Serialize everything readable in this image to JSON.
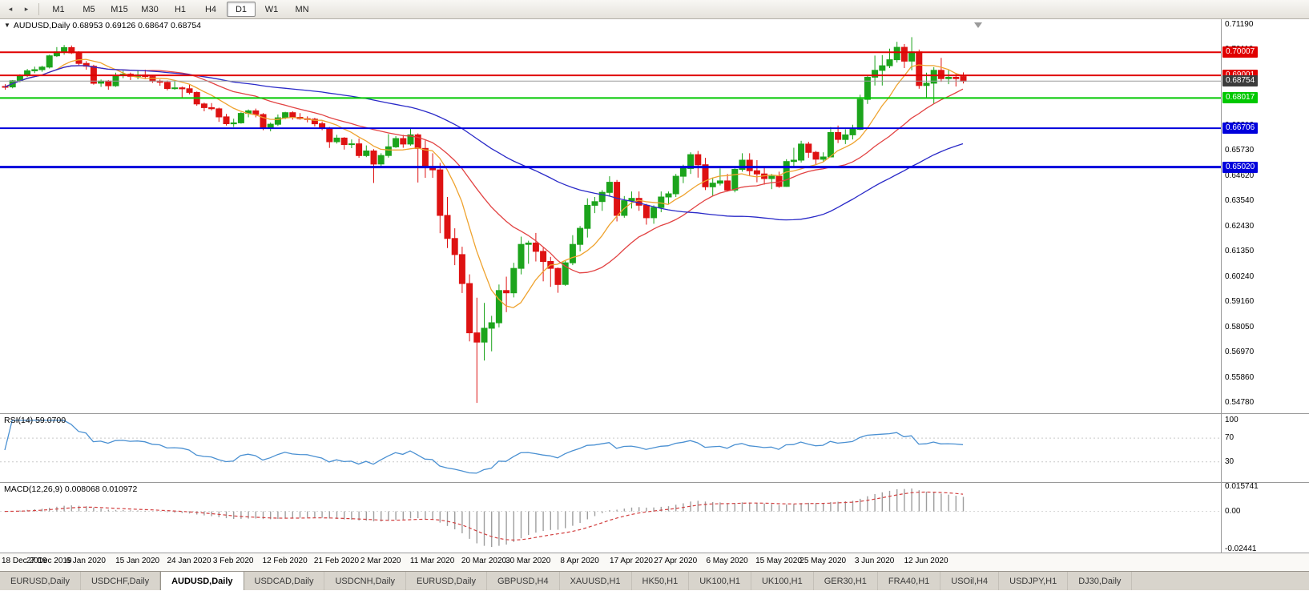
{
  "toolbar": {
    "timeframes": [
      "M1",
      "M5",
      "M15",
      "M30",
      "H1",
      "H4",
      "D1",
      "W1",
      "MN"
    ],
    "active_timeframe": "D1"
  },
  "main_chart": {
    "title": "AUDUSD,Daily 0.68953 0.69126 0.68647 0.68754",
    "price_min": 0.5454,
    "price_max": 0.7137,
    "price_axis_ticks": [
      {
        "label": "0.71190",
        "value": 0.7119
      },
      {
        "label": "0.70110",
        "value": 0.7011
      },
      {
        "label": "0.69000",
        "value": 0.69
      },
      {
        "label": "0.67920",
        "value": 0.6792
      },
      {
        "label": "0.66810",
        "value": 0.6681
      },
      {
        "label": "0.65730",
        "value": 0.6573
      },
      {
        "label": "0.64620",
        "value": 0.6462
      },
      {
        "label": "0.63540",
        "value": 0.6354
      },
      {
        "label": "0.62430",
        "value": 0.6243
      },
      {
        "label": "0.61350",
        "value": 0.6135
      },
      {
        "label": "0.60240",
        "value": 0.6024
      },
      {
        "label": "0.59160",
        "value": 0.5916
      },
      {
        "label": "0.58050",
        "value": 0.5805
      },
      {
        "label": "0.56970",
        "value": 0.5697
      },
      {
        "label": "0.55860",
        "value": 0.5586
      },
      {
        "label": "0.54780",
        "value": 0.5478
      }
    ],
    "horizontal_lines": [
      {
        "label": "0.70007",
        "price": 0.70007,
        "color": "#E00000",
        "width": 2
      },
      {
        "label": "0.69001",
        "price": 0.69001,
        "color": "#E00000",
        "width": 2
      },
      {
        "label": "0.68017",
        "price": 0.68017,
        "color": "#00C800",
        "width": 2
      },
      {
        "label": "0.66706",
        "price": 0.66706,
        "color": "#0000DC",
        "width": 2
      },
      {
        "label": "0.65020",
        "price": 0.6502,
        "color": "#0000DC",
        "width": 3
      }
    ],
    "current_price": {
      "label": "0.68754",
      "value": 0.68754,
      "badge_color": "#3C3C3C",
      "line_color": "#9a9a9a"
    },
    "colors": {
      "bull": "#1CA41C",
      "bear": "#DE1212",
      "ma_fast": "#EFA32F",
      "ma_medium": "#E24343",
      "ma_slow": "#2A2AC8"
    }
  },
  "chart_data": {
    "type": "candlestick",
    "symbol": "AUDUSD",
    "timeframe": "Daily",
    "ohlc_display": {
      "open": "0.68953",
      "high": "0.69126",
      "low": "0.68647",
      "close": "0.68754"
    },
    "moving_averages": [
      {
        "name": "fast",
        "period": 8
      },
      {
        "name": "medium",
        "period": 20
      },
      {
        "name": "slow",
        "period": 50
      }
    ],
    "candles": [
      [
        0.6852,
        0.6862,
        0.6838,
        0.685
      ],
      [
        0.685,
        0.688,
        0.6844,
        0.6877
      ],
      [
        0.6877,
        0.6905,
        0.687,
        0.69
      ],
      [
        0.69,
        0.6928,
        0.6893,
        0.692
      ],
      [
        0.692,
        0.6938,
        0.691,
        0.6925
      ],
      [
        0.6925,
        0.6942,
        0.6916,
        0.6936
      ],
      [
        0.6936,
        0.699,
        0.693,
        0.6985
      ],
      [
        0.6985,
        0.7023,
        0.698,
        0.7002
      ],
      [
        0.7002,
        0.7032,
        0.699,
        0.7021
      ],
      [
        0.7021,
        0.703,
        0.6993,
        0.6998
      ],
      [
        0.6998,
        0.7005,
        0.6945,
        0.6952
      ],
      [
        0.6952,
        0.6962,
        0.6925,
        0.694
      ],
      [
        0.694,
        0.6946,
        0.686,
        0.6866
      ],
      [
        0.6866,
        0.6882,
        0.685,
        0.6875
      ],
      [
        0.6875,
        0.688,
        0.6838,
        0.6855
      ],
      [
        0.6855,
        0.6912,
        0.685,
        0.69
      ],
      [
        0.69,
        0.692,
        0.6888,
        0.6905
      ],
      [
        0.6905,
        0.6912,
        0.688,
        0.6896
      ],
      [
        0.6896,
        0.692,
        0.6883,
        0.6902
      ],
      [
        0.6902,
        0.6925,
        0.6884,
        0.6895
      ],
      [
        0.6895,
        0.69,
        0.6868,
        0.6875
      ],
      [
        0.6875,
        0.6882,
        0.6855,
        0.687
      ],
      [
        0.687,
        0.6878,
        0.6835,
        0.6843
      ],
      [
        0.6843,
        0.688,
        0.6838,
        0.6846
      ],
      [
        0.6846,
        0.6852,
        0.6805,
        0.6842
      ],
      [
        0.6842,
        0.686,
        0.6818,
        0.6826
      ],
      [
        0.6826,
        0.683,
        0.6768,
        0.6776
      ],
      [
        0.6776,
        0.6782,
        0.6744,
        0.676
      ],
      [
        0.676,
        0.678,
        0.6748,
        0.6755
      ],
      [
        0.6755,
        0.676,
        0.6698,
        0.672
      ],
      [
        0.672,
        0.6733,
        0.6682,
        0.669
      ],
      [
        0.669,
        0.6712,
        0.6676,
        0.6694
      ],
      [
        0.6694,
        0.674,
        0.669,
        0.6735
      ],
      [
        0.6735,
        0.6752,
        0.6718,
        0.6746
      ],
      [
        0.6746,
        0.6756,
        0.6718,
        0.673
      ],
      [
        0.673,
        0.6736,
        0.6662,
        0.667
      ],
      [
        0.667,
        0.6695,
        0.6657,
        0.6688
      ],
      [
        0.6688,
        0.673,
        0.668,
        0.6716
      ],
      [
        0.6716,
        0.6742,
        0.671,
        0.6738
      ],
      [
        0.6738,
        0.6744,
        0.6708,
        0.6718
      ],
      [
        0.6718,
        0.6736,
        0.6708,
        0.6712
      ],
      [
        0.6712,
        0.6722,
        0.6696,
        0.671
      ],
      [
        0.671,
        0.6716,
        0.6678,
        0.669
      ],
      [
        0.669,
        0.67,
        0.6662,
        0.667
      ],
      [
        0.667,
        0.6676,
        0.6585,
        0.6612
      ],
      [
        0.6612,
        0.6642,
        0.6604,
        0.6628
      ],
      [
        0.6628,
        0.6632,
        0.6578,
        0.66
      ],
      [
        0.66,
        0.6622,
        0.6584,
        0.6603
      ],
      [
        0.6603,
        0.6626,
        0.6542,
        0.6552
      ],
      [
        0.6552,
        0.6596,
        0.6545,
        0.6572
      ],
      [
        0.6572,
        0.658,
        0.6433,
        0.6515
      ],
      [
        0.6515,
        0.6562,
        0.6505,
        0.6552
      ],
      [
        0.6552,
        0.6645,
        0.6543,
        0.659
      ],
      [
        0.659,
        0.6636,
        0.6585,
        0.6626
      ],
      [
        0.6626,
        0.6642,
        0.6586,
        0.6602
      ],
      [
        0.6602,
        0.6672,
        0.6595,
        0.6642
      ],
      [
        0.6642,
        0.6648,
        0.6435,
        0.6583
      ],
      [
        0.6583,
        0.6618,
        0.6455,
        0.6502
      ],
      [
        0.6502,
        0.6562,
        0.6455,
        0.649
      ],
      [
        0.649,
        0.652,
        0.6215,
        0.6292
      ],
      [
        0.6292,
        0.6372,
        0.615,
        0.6192
      ],
      [
        0.6192,
        0.6236,
        0.6076,
        0.6122
      ],
      [
        0.6122,
        0.6156,
        0.5955,
        0.5996
      ],
      [
        0.5996,
        0.6036,
        0.5745,
        0.5782
      ],
      [
        0.5782,
        0.5935,
        0.5478,
        0.5742
      ],
      [
        0.5742,
        0.5912,
        0.5662,
        0.5802
      ],
      [
        0.5802,
        0.5856,
        0.5702,
        0.5826
      ],
      [
        0.5826,
        0.5992,
        0.5806,
        0.5966
      ],
      [
        0.5966,
        0.6026,
        0.5872,
        0.5956
      ],
      [
        0.5956,
        0.6086,
        0.5936,
        0.6062
      ],
      [
        0.6062,
        0.62,
        0.6036,
        0.6166
      ],
      [
        0.6166,
        0.6182,
        0.6082,
        0.6172
      ],
      [
        0.6172,
        0.6216,
        0.6092,
        0.6136
      ],
      [
        0.6136,
        0.6152,
        0.6006,
        0.6092
      ],
      [
        0.6092,
        0.6112,
        0.5982,
        0.6062
      ],
      [
        0.6062,
        0.6066,
        0.5956,
        0.5992
      ],
      [
        0.5992,
        0.6096,
        0.5986,
        0.6086
      ],
      [
        0.6086,
        0.6206,
        0.6076,
        0.6166
      ],
      [
        0.6166,
        0.6246,
        0.6136,
        0.6236
      ],
      [
        0.6236,
        0.6366,
        0.6196,
        0.6336
      ],
      [
        0.6336,
        0.6372,
        0.6302,
        0.6352
      ],
      [
        0.6352,
        0.6402,
        0.6312,
        0.6392
      ],
      [
        0.6392,
        0.6462,
        0.6376,
        0.6436
      ],
      [
        0.6436,
        0.6446,
        0.6266,
        0.6292
      ],
      [
        0.6292,
        0.6376,
        0.6282,
        0.6356
      ],
      [
        0.6356,
        0.6396,
        0.6322,
        0.6366
      ],
      [
        0.6366,
        0.6396,
        0.6312,
        0.6336
      ],
      [
        0.6336,
        0.6342,
        0.6252,
        0.6282
      ],
      [
        0.6282,
        0.6336,
        0.6256,
        0.6326
      ],
      [
        0.6326,
        0.6396,
        0.6306,
        0.6372
      ],
      [
        0.6372,
        0.6396,
        0.6342,
        0.6386
      ],
      [
        0.6386,
        0.6472,
        0.6372,
        0.6462
      ],
      [
        0.6462,
        0.6512,
        0.6432,
        0.6496
      ],
      [
        0.6496,
        0.6566,
        0.6472,
        0.6556
      ],
      [
        0.6556,
        0.6572,
        0.6456,
        0.6512
      ],
      [
        0.6512,
        0.6542,
        0.6402,
        0.6416
      ],
      [
        0.6416,
        0.6456,
        0.6376,
        0.6432
      ],
      [
        0.6432,
        0.6496,
        0.6422,
        0.6442
      ],
      [
        0.6442,
        0.6472,
        0.6396,
        0.6402
      ],
      [
        0.6402,
        0.6496,
        0.6392,
        0.6492
      ],
      [
        0.6492,
        0.6562,
        0.6482,
        0.6532
      ],
      [
        0.6532,
        0.6562,
        0.6466,
        0.6486
      ],
      [
        0.6486,
        0.6532,
        0.6436,
        0.6472
      ],
      [
        0.6472,
        0.6506,
        0.6426,
        0.6452
      ],
      [
        0.6452,
        0.6472,
        0.6406,
        0.6462
      ],
      [
        0.6462,
        0.6482,
        0.6412,
        0.6418
      ],
      [
        0.6418,
        0.6536,
        0.6416,
        0.6526
      ],
      [
        0.6526,
        0.6586,
        0.6506,
        0.6532
      ],
      [
        0.6532,
        0.6616,
        0.6522,
        0.6602
      ],
      [
        0.6602,
        0.6612,
        0.6542,
        0.6566
      ],
      [
        0.6566,
        0.6572,
        0.6512,
        0.6536
      ],
      [
        0.6536,
        0.6566,
        0.6526,
        0.6546
      ],
      [
        0.6546,
        0.6676,
        0.6546,
        0.6652
      ],
      [
        0.6652,
        0.6682,
        0.6606,
        0.6622
      ],
      [
        0.6622,
        0.6666,
        0.6602,
        0.6642
      ],
      [
        0.6642,
        0.6686,
        0.6622,
        0.6666
      ],
      [
        0.6666,
        0.6816,
        0.6662,
        0.6796
      ],
      [
        0.6796,
        0.6902,
        0.6776,
        0.6892
      ],
      [
        0.6892,
        0.6986,
        0.6856,
        0.6922
      ],
      [
        0.6922,
        0.6988,
        0.6856,
        0.6942
      ],
      [
        0.6942,
        0.7016,
        0.6932,
        0.6968
      ],
      [
        0.6968,
        0.7046,
        0.6956,
        0.7022
      ],
      [
        0.7022,
        0.7036,
        0.6932,
        0.6962
      ],
      [
        0.6962,
        0.7066,
        0.6922,
        0.7002
      ],
      [
        0.7002,
        0.7012,
        0.6842,
        0.6856
      ],
      [
        0.6856,
        0.6912,
        0.6802,
        0.6866
      ],
      [
        0.6866,
        0.6936,
        0.6776,
        0.6922
      ],
      [
        0.6922,
        0.6976,
        0.6872,
        0.6886
      ],
      [
        0.6886,
        0.6926,
        0.6862,
        0.6892
      ],
      [
        0.6892,
        0.6906,
        0.6852,
        0.6886
      ],
      [
        0.6895,
        0.6913,
        0.6865,
        0.6875
      ]
    ],
    "date_labels": [
      {
        "label": "18 Dec 2019",
        "index": 0
      },
      {
        "label": "27 Dec 2019",
        "index": 6
      },
      {
        "label": "6 Jan 2020",
        "index": 11
      },
      {
        "label": "15 Jan 2020",
        "index": 18
      },
      {
        "label": "24 Jan 2020",
        "index": 25
      },
      {
        "label": "3 Feb 2020",
        "index": 31
      },
      {
        "label": "12 Feb 2020",
        "index": 38
      },
      {
        "label": "21 Feb 2020",
        "index": 45
      },
      {
        "label": "2 Mar 2020",
        "index": 51
      },
      {
        "label": "11 Mar 2020",
        "index": 58
      },
      {
        "label": "20 Mar 2020",
        "index": 65
      },
      {
        "label": "30 Mar 2020",
        "index": 71
      },
      {
        "label": "8 Apr 2020",
        "index": 78
      },
      {
        "label": "17 Apr 2020",
        "index": 85
      },
      {
        "label": "27 Apr 2020",
        "index": 91
      },
      {
        "label": "6 May 2020",
        "index": 98
      },
      {
        "label": "15 May 2020",
        "index": 105
      },
      {
        "label": "25 May 2020",
        "index": 111
      },
      {
        "label": "3 Jun 2020",
        "index": 118
      },
      {
        "label": "12 Jun 2020",
        "index": 125
      }
    ]
  },
  "rsi_panel": {
    "label": "RSI(14) 59.0700",
    "period": 14,
    "current_value": "59.0700",
    "axis_ticks": [
      {
        "label": "100",
        "value": 100
      },
      {
        "label": "70",
        "value": 70
      },
      {
        "label": "30",
        "value": 30
      }
    ],
    "levels": [
      70,
      30
    ],
    "line_color": "#4A90D2"
  },
  "macd_panel": {
    "label": "MACD(12,26,9) 0.008068 0.010972",
    "fast_period": 12,
    "slow_period": 26,
    "signal_period": 9,
    "current_macd": "0.008068",
    "current_signal": "0.010972",
    "scale_max": 0.015741,
    "scale_min": -0.02441,
    "axis_ticks": [
      {
        "label": "0.015741",
        "value": 0.015741
      },
      {
        "label": "0.00",
        "value": 0
      },
      {
        "label": "-0.02441",
        "value": -0.02441
      }
    ],
    "histogram_color": "#9E9E9E",
    "signal_color": "#D24040"
  },
  "bottom_tabs": {
    "active_index": 2,
    "tabs": [
      "EURUSD,Daily",
      "USDCHF,Daily",
      "AUDUSD,Daily",
      "USDCAD,Daily",
      "USDCNH,Daily",
      "EURUSD,Daily",
      "GBPUSD,H4",
      "XAUUSD,H1",
      "HK50,H1",
      "UK100,H1",
      "UK100,H1",
      "GER30,H1",
      "FRA40,H1",
      "USOil,H4",
      "USDJPY,H1",
      "DJ30,Daily"
    ]
  }
}
